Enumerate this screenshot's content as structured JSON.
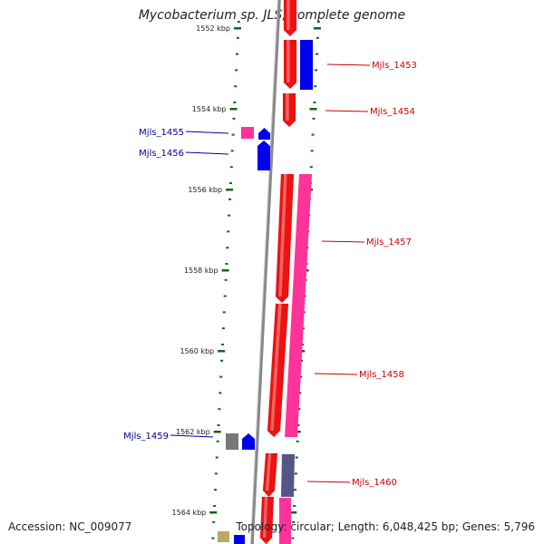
{
  "title": "Mycobacterium sp. JLS, complete genome",
  "accession": "Accession: NC_009077",
  "summary": "Topology: circular; Length: 6,048,425 bp; Genes: 5,796",
  "colors": {
    "forward": "#ee1111",
    "forward_dark": "#cc0000",
    "reverse": "#0000ee",
    "pink": "#ff3399",
    "slate": "#555588",
    "gray": "#777777",
    "olive": "#bbaa66",
    "tick": "#116611",
    "label_red": "#cc0000",
    "label_blue": "#000099"
  },
  "tick_labels": [
    "1552 kbp",
    "1554 kbp",
    "1556 kbp",
    "1558 kbp",
    "1560 kbp",
    "1562 kbp",
    "1564 kbp"
  ],
  "gene_labels": [
    {
      "id": "Mjls_1453",
      "strand": "forward"
    },
    {
      "id": "Mjls_1454",
      "strand": "forward"
    },
    {
      "id": "Mjls_1455",
      "strand": "reverse"
    },
    {
      "id": "Mjls_1456",
      "strand": "reverse"
    },
    {
      "id": "Mjls_1457",
      "strand": "forward"
    },
    {
      "id": "Mjls_1458",
      "strand": "forward"
    },
    {
      "id": "Mjls_1459",
      "strand": "reverse"
    },
    {
      "id": "Mjls_1460",
      "strand": "forward"
    }
  ]
}
